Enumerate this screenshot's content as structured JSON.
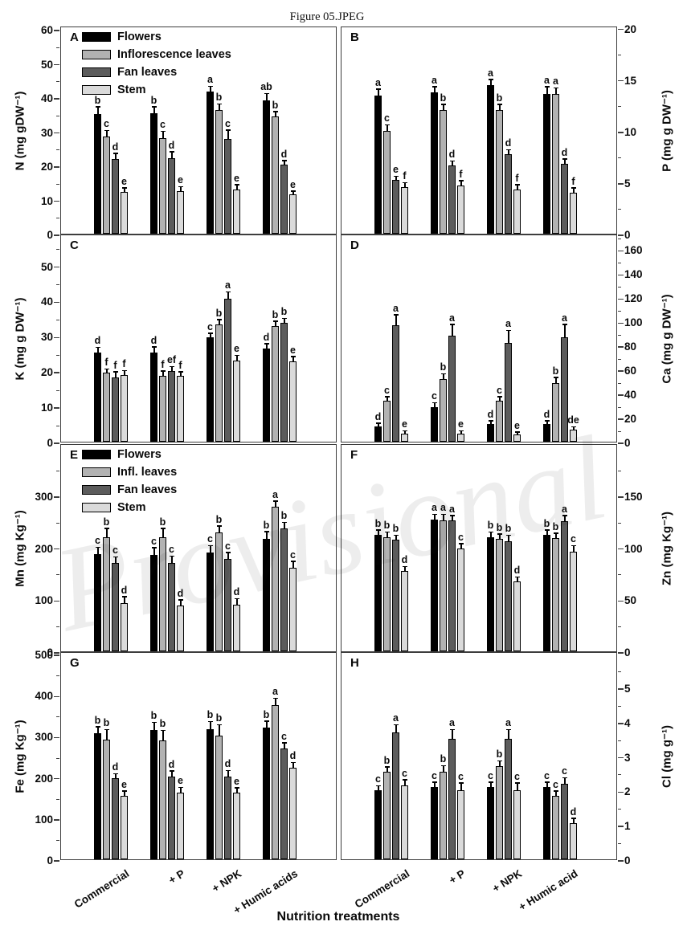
{
  "figure": {
    "title": "Figure 05.JPEG",
    "watermark": "Provisional",
    "xaxis_title": "Nutrition treatments"
  },
  "series_colors": {
    "flowers": "#000000",
    "inflorescence_leaves": "#b2b2b2",
    "fan_leaves": "#5c5c5c",
    "stem": "#dadada"
  },
  "chart_data": [
    {
      "panel": "A",
      "type": "bar",
      "ylabel": "N (mg gDW⁻¹)",
      "axis_side": "left",
      "ylim": [
        0,
        61
      ],
      "yticks": [
        0,
        10,
        20,
        30,
        40,
        50,
        60
      ],
      "grid": false,
      "categories": [
        "Commercial",
        "+ P",
        "+ NPK",
        "+ Humic acids"
      ],
      "show_x_labels": false,
      "legend": [
        "Flowers",
        "Inflorescence leaves",
        "Fan leaves",
        "Stem"
      ],
      "series": [
        {
          "name": "Flowers",
          "color": "#000000",
          "values": [
            35.2,
            35.4,
            41.6,
            39.1
          ],
          "errors": [
            1.8,
            1.6,
            1.5,
            1.8
          ],
          "letters": [
            "b",
            "b",
            "a",
            "ab"
          ]
        },
        {
          "name": "Inflorescence leaves",
          "color": "#b2b2b2",
          "values": [
            28.6,
            28.1,
            36.3,
            34.4
          ],
          "errors": [
            1.5,
            1.8,
            1.6,
            1.2
          ],
          "letters": [
            "c",
            "c",
            "b",
            "b"
          ]
        },
        {
          "name": "Fan leaves",
          "color": "#5c5c5c",
          "values": [
            21.8,
            22.1,
            27.8,
            20.3
          ],
          "errors": [
            1.6,
            1.8,
            2.4,
            1.0
          ],
          "letters": [
            "d",
            "d",
            "c",
            "d"
          ]
        },
        {
          "name": "Stem",
          "color": "#dadada",
          "values": [
            12.3,
            12.6,
            12.9,
            11.5
          ],
          "errors": [
            0.9,
            1.0,
            1.3,
            0.8
          ],
          "letters": [
            "e",
            "e",
            "e",
            "e"
          ]
        }
      ]
    },
    {
      "panel": "B",
      "type": "bar",
      "ylabel": "P (mg g DW⁻¹)",
      "axis_side": "right",
      "ylim": [
        0,
        20.2
      ],
      "yticks": [
        0,
        5,
        10,
        15,
        20
      ],
      "grid": false,
      "categories": [
        "Commercial",
        "+ P",
        "+ NPK",
        "+ Humic acid"
      ],
      "show_x_labels": false,
      "series": [
        {
          "name": "Flowers",
          "color": "#000000",
          "values": [
            13.4,
            13.7,
            14.4,
            13.6
          ],
          "errors": [
            0.6,
            0.5,
            0.5,
            0.6
          ],
          "letters": [
            "a",
            "a",
            "a",
            "a"
          ]
        },
        {
          "name": "Inflorescence leaves",
          "color": "#b2b2b2",
          "values": [
            10.0,
            12.0,
            12.0,
            13.6
          ],
          "errors": [
            0.5,
            0.5,
            0.5,
            0.5
          ],
          "letters": [
            "c",
            "b",
            "b",
            "a"
          ]
        },
        {
          "name": "Fan leaves",
          "color": "#5c5c5c",
          "values": [
            5.2,
            6.6,
            7.7,
            6.8
          ],
          "errors": [
            0.3,
            0.4,
            0.4,
            0.4
          ],
          "letters": [
            "e",
            "d",
            "d",
            "d"
          ]
        },
        {
          "name": "Stem",
          "color": "#dadada",
          "values": [
            4.5,
            4.7,
            4.3,
            4.0
          ],
          "errors": [
            0.4,
            0.4,
            0.4,
            0.4
          ],
          "letters": [
            "f",
            "f",
            "f",
            "f"
          ]
        }
      ]
    },
    {
      "panel": "C",
      "type": "bar",
      "ylabel": "K (mg g DW⁻¹)",
      "axis_side": "left",
      "ylim": [
        0,
        59
      ],
      "yticks": [
        0,
        10,
        20,
        30,
        40,
        50
      ],
      "grid": false,
      "categories": [
        "Commercial",
        "+ P",
        "+ NPK",
        "+ Humic acids"
      ],
      "show_x_labels": false,
      "series": [
        {
          "name": "Flowers",
          "color": "#000000",
          "values": [
            25.4,
            25.4,
            29.6,
            26.4
          ],
          "errors": [
            1.2,
            1.3,
            1.0,
            1.2
          ],
          "letters": [
            "d",
            "d",
            "c",
            "d"
          ]
        },
        {
          "name": "Inflorescence leaves",
          "color": "#b2b2b2",
          "values": [
            19.5,
            18.7,
            33.3,
            32.8
          ],
          "errors": [
            1.0,
            1.2,
            1.2,
            1.2
          ],
          "letters": [
            "f",
            "f",
            "b",
            "b"
          ]
        },
        {
          "name": "Fan leaves",
          "color": "#5c5c5c",
          "values": [
            18.2,
            20.1,
            40.5,
            33.8
          ],
          "errors": [
            1.5,
            1.0,
            1.8,
            1.0
          ],
          "letters": [
            "f",
            "ef",
            "a",
            "b"
          ]
        },
        {
          "name": "Stem",
          "color": "#dadada",
          "values": [
            19.0,
            18.7,
            23.0,
            22.8
          ],
          "errors": [
            1.0,
            1.0,
            1.3,
            1.2
          ],
          "letters": [
            "f",
            "f",
            "e",
            "e"
          ]
        }
      ]
    },
    {
      "panel": "D",
      "type": "bar",
      "ylabel": "Ca (mg g DW⁻¹)",
      "axis_side": "right",
      "ylim": [
        0,
        173
      ],
      "yticks": [
        0,
        20,
        40,
        60,
        80,
        100,
        120,
        140,
        160
      ],
      "grid": false,
      "categories": [
        "Commercial",
        "+ P",
        "+ NPK",
        "+ Humic acid"
      ],
      "show_x_labels": false,
      "series": [
        {
          "name": "Flowers",
          "color": "#000000",
          "values": [
            13,
            29,
            15,
            15
          ],
          "errors": [
            2,
            3,
            2,
            2
          ],
          "letters": [
            "d",
            "c",
            "d",
            "d"
          ]
        },
        {
          "name": "Inflorescence leaves",
          "color": "#b2b2b2",
          "values": [
            34,
            52,
            34,
            49
          ],
          "errors": [
            3,
            4,
            3,
            4
          ],
          "letters": [
            "c",
            "b",
            "c",
            "b"
          ]
        },
        {
          "name": "Fan leaves",
          "color": "#5c5c5c",
          "values": [
            97,
            88,
            82,
            87
          ],
          "errors": [
            8,
            9,
            10,
            10
          ],
          "letters": [
            "a",
            "a",
            "a",
            "a"
          ]
        },
        {
          "name": "Stem",
          "color": "#dadada",
          "values": [
            7,
            7,
            6,
            10
          ],
          "errors": [
            1.5,
            1.5,
            1.5,
            2
          ],
          "letters": [
            "e",
            "e",
            "e",
            "de"
          ]
        }
      ]
    },
    {
      "panel": "E",
      "type": "bar",
      "ylabel": "Mn (mg Kg⁻¹)",
      "axis_side": "left",
      "ylim": [
        0,
        400
      ],
      "yticks": [
        0,
        100,
        200,
        300
      ],
      "grid": false,
      "categories": [
        "Commercial",
        "+ P",
        "+ NPK",
        "+ Humic acids"
      ],
      "show_x_labels": false,
      "legend": [
        "Flowers",
        "Infl. leaves",
        "Fan leaves",
        "Stem"
      ],
      "series": [
        {
          "name": "Flowers",
          "color": "#000000",
          "values": [
            187,
            186,
            190,
            217
          ],
          "errors": [
            12,
            12,
            12,
            12
          ],
          "letters": [
            "c",
            "c",
            "c",
            "b"
          ]
        },
        {
          "name": "Inflorescence leaves",
          "color": "#b2b2b2",
          "values": [
            220,
            220,
            228,
            278
          ],
          "errors": [
            15,
            15,
            12,
            10
          ],
          "letters": [
            "b",
            "b",
            "b",
            "a"
          ]
        },
        {
          "name": "Fan leaves",
          "color": "#5c5c5c",
          "values": [
            170,
            170,
            177,
            237
          ],
          "errors": [
            10,
            12,
            12,
            10
          ],
          "letters": [
            "c",
            "c",
            "c",
            "b"
          ]
        },
        {
          "name": "Stem",
          "color": "#dadada",
          "values": [
            92,
            88,
            90,
            160
          ],
          "errors": [
            12,
            10,
            10,
            12
          ],
          "letters": [
            "d",
            "d",
            "d",
            "c"
          ]
        }
      ]
    },
    {
      "panel": "F",
      "type": "bar",
      "ylabel": "Zn (mg Kg⁻¹)",
      "axis_side": "right",
      "ylim": [
        0,
        200
      ],
      "yticks": [
        0,
        50,
        100,
        150
      ],
      "grid": false,
      "categories": [
        "Commercial",
        "+ P",
        "+ NPK",
        "+ Humic acid"
      ],
      "show_x_labels": false,
      "series": [
        {
          "name": "Flowers",
          "color": "#000000",
          "values": [
            112,
            127,
            110,
            112
          ],
          "errors": [
            4,
            4,
            4,
            4
          ],
          "letters": [
            "b",
            "a",
            "b",
            "b"
          ]
        },
        {
          "name": "Inflorescence leaves",
          "color": "#b2b2b2",
          "values": [
            110,
            126,
            108,
            109
          ],
          "errors": [
            4,
            5,
            4,
            4
          ],
          "letters": [
            "b",
            "a",
            "b",
            "b"
          ]
        },
        {
          "name": "Fan leaves",
          "color": "#5c5c5c",
          "values": [
            107,
            126,
            106,
            125
          ],
          "errors": [
            4,
            4,
            5,
            5
          ],
          "letters": [
            "b",
            "a",
            "b",
            "a"
          ]
        },
        {
          "name": "Stem",
          "color": "#dadada",
          "values": [
            77,
            99,
            67,
            96
          ],
          "errors": [
            4,
            4,
            4,
            5
          ],
          "letters": [
            "d",
            "c",
            "d",
            "c"
          ]
        }
      ]
    },
    {
      "panel": "G",
      "type": "bar",
      "ylabel": "Fe (mg Kg⁻¹)",
      "axis_side": "left",
      "ylim": [
        0,
        506
      ],
      "yticks": [
        0,
        100,
        200,
        300,
        400,
        500
      ],
      "grid": false,
      "categories": [
        "Commercial",
        "+ P",
        "+ NPK",
        "+ Humic acids"
      ],
      "show_x_labels": true,
      "series": [
        {
          "name": "Flowers",
          "color": "#000000",
          "values": [
            306,
            314,
            316,
            320
          ],
          "errors": [
            15,
            18,
            18,
            15
          ],
          "letters": [
            "b",
            "b",
            "b",
            "b"
          ]
        },
        {
          "name": "Inflorescence leaves",
          "color": "#b2b2b2",
          "values": [
            292,
            290,
            301,
            375
          ],
          "errors": [
            22,
            22,
            25,
            15
          ],
          "letters": [
            "b",
            "b",
            "b",
            "a"
          ]
        },
        {
          "name": "Fan leaves",
          "color": "#5c5c5c",
          "values": [
            197,
            201,
            202,
            270
          ],
          "errors": [
            10,
            12,
            12,
            12
          ],
          "letters": [
            "d",
            "d",
            "d",
            "c"
          ]
        },
        {
          "name": "Stem",
          "color": "#dadada",
          "values": [
            155,
            163,
            162,
            222
          ],
          "errors": [
            10,
            10,
            10,
            12
          ],
          "letters": [
            "e",
            "e",
            "e",
            "d"
          ]
        }
      ]
    },
    {
      "panel": "H",
      "type": "bar",
      "ylabel": "Cl (mg g⁻¹)",
      "axis_side": "right",
      "ylim": [
        0,
        6.05
      ],
      "yticks": [
        0,
        1,
        2,
        3,
        4,
        5
      ],
      "grid": false,
      "categories": [
        "Commercial",
        "+ P",
        "+ NPK",
        "+ Humic acid"
      ],
      "show_x_labels": true,
      "series": [
        {
          "name": "Flowers",
          "color": "#000000",
          "values": [
            2.0,
            2.1,
            2.1,
            2.1
          ],
          "errors": [
            0.12,
            0.12,
            0.12,
            0.12
          ],
          "letters": [
            "c",
            "c",
            "c",
            "c"
          ]
        },
        {
          "name": "Inflorescence leaves",
          "color": "#b2b2b2",
          "values": [
            2.55,
            2.55,
            2.7,
            1.85
          ],
          "errors": [
            0.12,
            0.15,
            0.15,
            0.12
          ],
          "letters": [
            "b",
            "b",
            "b",
            "c"
          ]
        },
        {
          "name": "Fan leaves",
          "color": "#5c5c5c",
          "values": [
            3.7,
            3.5,
            3.5,
            2.2
          ],
          "errors": [
            0.2,
            0.25,
            0.25,
            0.15
          ],
          "letters": [
            "a",
            "a",
            "a",
            "c"
          ]
        },
        {
          "name": "Stem",
          "color": "#dadada",
          "values": [
            2.15,
            2.0,
            2.0,
            1.05
          ],
          "errors": [
            0.15,
            0.2,
            0.2,
            0.12
          ],
          "letters": [
            "c",
            "c",
            "c",
            "d"
          ]
        }
      ]
    }
  ]
}
